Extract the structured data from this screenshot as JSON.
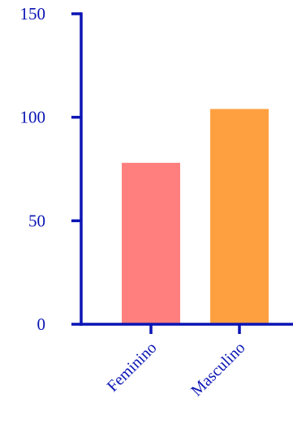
{
  "chart_data": {
    "type": "bar",
    "title": "",
    "xlabel": "",
    "ylabel": "",
    "categories": [
      "Feminino",
      "Masculino"
    ],
    "values": [
      78,
      104
    ],
    "bar_colors": [
      "#ff7f7f",
      "#ffa040"
    ],
    "axis_color": "#0a14b4",
    "ylim": [
      0,
      150
    ],
    "yticks": [
      0,
      50,
      100,
      150
    ],
    "ytick_labels": [
      "0",
      "50",
      "100",
      "150"
    ],
    "grid": false,
    "legend": "none"
  }
}
